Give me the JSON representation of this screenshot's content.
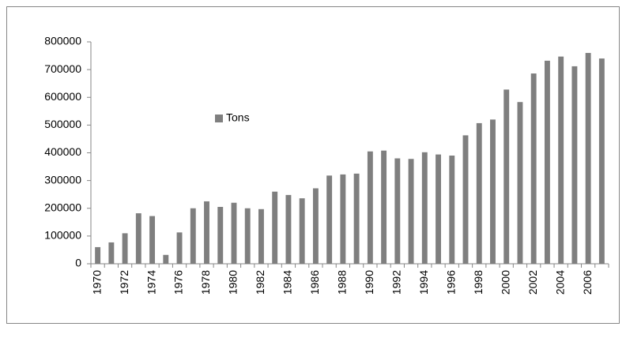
{
  "chart_data": {
    "type": "bar",
    "categories": [
      "1970",
      null,
      "1972",
      null,
      "1974",
      null,
      "1976",
      null,
      "1978",
      null,
      "1980",
      null,
      "1982",
      null,
      "1984",
      null,
      "1986",
      null,
      "1988",
      null,
      "1990",
      null,
      "1992",
      null,
      "1994",
      null,
      "1996",
      null,
      "1998",
      null,
      "2000",
      null,
      "2002",
      null,
      "2004",
      null,
      "2006",
      null
    ],
    "series": [
      {
        "name": "Tons",
        "color": "#7f7f7f",
        "values": [
          60000,
          77000,
          110000,
          182000,
          172000,
          32000,
          113000,
          200000,
          225000,
          205000,
          220000,
          200000,
          197000,
          260000,
          248000,
          236000,
          272000,
          318000,
          322000,
          325000,
          405000,
          408000,
          380000,
          378000,
          402000,
          394000,
          390000,
          463000,
          507000,
          520000,
          628000,
          583000,
          686000,
          732000,
          747000,
          712000,
          760000,
          740000
        ]
      }
    ],
    "ylim": [
      0,
      800000
    ],
    "yticks": [
      0,
      100000,
      200000,
      300000,
      400000,
      500000,
      600000,
      700000,
      800000
    ],
    "grid": false,
    "legend": "center-left"
  }
}
